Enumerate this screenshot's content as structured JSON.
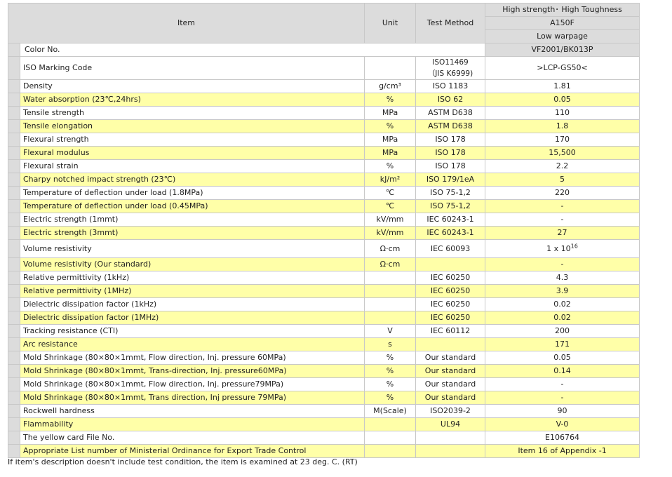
{
  "header": {
    "item": "Item",
    "unit": "Unit",
    "test_method": "Test Method",
    "grade_line1": "High strength･ High Toughness",
    "grade_line2": "A150F",
    "grade_line3": "Low warpage"
  },
  "color_no": {
    "label": "Color No.",
    "value": "VF2001/BK013P"
  },
  "iso_marking": {
    "label": "ISO Marking Code",
    "method_line1": "ISO11469",
    "method_line2": "（JIS K6999)",
    "value": ">LCP-GS50<"
  },
  "rows": [
    {
      "item": "Density",
      "unit": "g/cm³",
      "method": "ISO 1183",
      "value": "1.81"
    },
    {
      "item": "Water absorption (23℃,24hrs)",
      "unit": "%",
      "method": "ISO 62",
      "value": "0.05"
    },
    {
      "item": "Tensile strength",
      "unit": "MPa",
      "method": "ASTM D638",
      "value": "110"
    },
    {
      "item": "Tensile elongation",
      "unit": "%",
      "method": "ASTM D638",
      "value": "1.8"
    },
    {
      "item": "Flexural strength",
      "unit": "MPa",
      "method": "ISO 178",
      "value": "170"
    },
    {
      "item": "Flexural modulus",
      "unit": "MPa",
      "method": "ISO 178",
      "value": "15,500"
    },
    {
      "item": "Flexural strain",
      "unit": "%",
      "method": "ISO 178",
      "value": "2.2"
    },
    {
      "item": "Charpy notched impact strength (23℃)",
      "unit": "kJ/m²",
      "method": "ISO 179/1eA",
      "value": "5"
    },
    {
      "item": "Temperature of deflection under load (1.8MPa)",
      "unit": "℃",
      "method": "ISO 75-1,2",
      "value": "220"
    },
    {
      "item": "Temperature of deflection under load (0.45MPa)",
      "unit": "℃",
      "method": "ISO 75-1,2",
      "value": "-"
    },
    {
      "item": "Electric strength (1mmt)",
      "unit": "kV/mm",
      "method": "IEC 60243-1",
      "value": "-"
    },
    {
      "item": "Electric strength (3mmt)",
      "unit": "kV/mm",
      "method": "IEC 60243-1",
      "value": "27"
    }
  ],
  "volume_resistivity": {
    "item": "Volume resistivity",
    "unit": "Ω·cm",
    "method": "IEC 60093",
    "value_base": "1 x 10",
    "value_exp": "16"
  },
  "rows2": [
    {
      "item": "Volume resistivity (Our standard)",
      "unit": "Ω·cm",
      "method": "",
      "value": "-"
    },
    {
      "item": "Relative permittivity (1kHz)",
      "unit": "",
      "method": "IEC 60250",
      "value": "4.3"
    },
    {
      "item": "Relative permittivity (1MHz)",
      "unit": "",
      "method": "IEC 60250",
      "value": "3.9"
    },
    {
      "item": "Dielectric dissipation factor (1kHz)",
      "unit": "",
      "method": "IEC 60250",
      "value": "0.02"
    },
    {
      "item": "Dielectric dissipation factor (1MHz)",
      "unit": "",
      "method": "IEC 60250",
      "value": "0.02"
    },
    {
      "item": "Tracking resistance (CTI)",
      "unit": "V",
      "method": "IEC 60112",
      "value": "200"
    },
    {
      "item": "Arc resistance",
      "unit": "s",
      "method": "",
      "value": "171"
    },
    {
      "item": "Mold Shrinkage (80×80×1mmt, Flow direction, Inj. pressure 60MPa)",
      "unit": "%",
      "method": "Our standard",
      "value": "0.05"
    },
    {
      "item": "Mold Shrinkage (80×80×1mmt, Trans-direction, Inj. pressure60MPa)",
      "unit": "%",
      "method": "Our standard",
      "value": "0.14"
    },
    {
      "item": "Mold Shrinkage (80×80×1mmt, Flow direction, Inj. pressure79MPa)",
      "unit": "%",
      "method": "Our standard",
      "value": "-"
    },
    {
      "item": "Mold Shrinkage (80×80×1mmt, Trans direction, Inj pressure 79MPa)",
      "unit": "%",
      "method": "Our standard",
      "value": "-"
    },
    {
      "item": "Rockwell hardness",
      "unit": "M(Scale)",
      "method": "ISO2039-2",
      "value": "90"
    },
    {
      "item": "Flammability",
      "unit": "",
      "method": "UL94",
      "value": "V-0"
    },
    {
      "item": "The yellow card File No.",
      "unit": "",
      "method": "",
      "value": "E106764"
    },
    {
      "item": "Appropriate List number of Ministerial Ordinance for Export Trade Control",
      "unit": "",
      "method": "",
      "value": "Item 16 of Appendix -1"
    }
  ],
  "footnote": "If item's description doesn't include test condition, the item is examined at 23 deg. C. (RT)",
  "colors": {
    "header_bg": "#dcdcdc",
    "highlight_row": "#ffffa8",
    "border": "#c8c8c8"
  }
}
